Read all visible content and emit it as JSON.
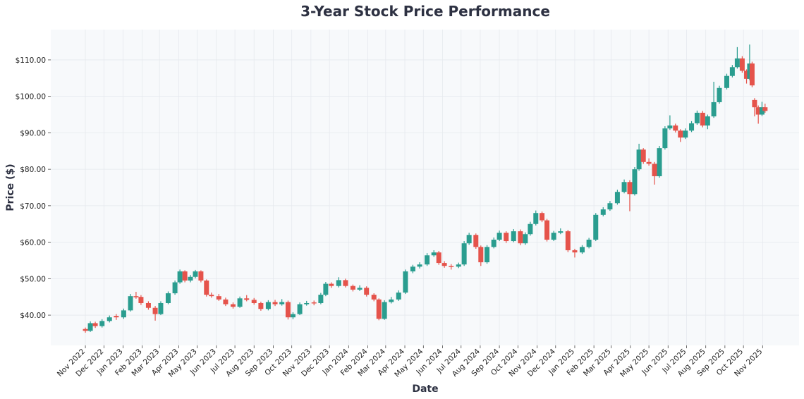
{
  "chart_data": {
    "type": "candlestick",
    "title": "3-Year Stock Price Performance",
    "xlabel": "Date",
    "ylabel": "Price ($)",
    "ylim": [
      31.7,
      118.3
    ],
    "xlim": [
      "2022-09-06",
      "2025-12-30"
    ],
    "grid": true,
    "colors": {
      "up": "#2a9d8f",
      "down": "#e5534b",
      "background": "#f7f9fb",
      "grid": "#e6e9ee",
      "title": "#2d3142"
    },
    "y_ticks": [
      40,
      50,
      60,
      70,
      80,
      90,
      100,
      110
    ],
    "y_tick_labels": [
      "$40.00",
      "$50.00",
      "$60.00",
      "$70.00",
      "$80.00",
      "$90.00",
      "$100.00",
      "$110.00"
    ],
    "x_ticks": [
      "2022-11-01",
      "2022-12-01",
      "2023-01-01",
      "2023-02-01",
      "2023-03-01",
      "2023-04-01",
      "2023-05-01",
      "2023-06-01",
      "2023-07-01",
      "2023-08-01",
      "2023-09-01",
      "2023-10-01",
      "2023-11-01",
      "2023-12-01",
      "2024-01-01",
      "2024-02-01",
      "2024-03-01",
      "2024-04-01",
      "2024-05-01",
      "2024-06-01",
      "2024-07-01",
      "2024-08-01",
      "2024-09-01",
      "2024-10-01",
      "2024-11-01",
      "2024-12-01",
      "2025-01-01",
      "2025-02-01",
      "2025-03-01",
      "2025-04-01",
      "2025-05-01",
      "2025-06-01",
      "2025-07-01",
      "2025-08-01",
      "2025-09-01",
      "2025-10-01",
      "2025-11-01"
    ],
    "x_tick_labels": [
      "Nov 2022",
      "Dec 2022",
      "Jan 2023",
      "Feb 2023",
      "Mar 2023",
      "Apr 2023",
      "May 2023",
      "Jun 2023",
      "Jul 2023",
      "Aug 2023",
      "Sep 2023",
      "Oct 2023",
      "Nov 2023",
      "Dec 2023",
      "Jan 2024",
      "Feb 2024",
      "Mar 2024",
      "Apr 2024",
      "May 2024",
      "Jun 2024",
      "Jul 2024",
      "Aug 2024",
      "Sep 2024",
      "Oct 2024",
      "Nov 2024",
      "Dec 2024",
      "Jan 2025",
      "Feb 2025",
      "Mar 2025",
      "Apr 2025",
      "May 2025",
      "Jun 2025",
      "Jul 2025",
      "Aug 2025",
      "Sep 2025",
      "Oct 2025",
      "Nov 2025"
    ],
    "ohlc_columns": [
      "date",
      "open",
      "high",
      "low",
      "close"
    ],
    "ohlc": [
      [
        "2022-11-01",
        36.2,
        36.6,
        35.2,
        35.7
      ],
      [
        "2022-11-09",
        35.7,
        38.3,
        35.4,
        37.8
      ],
      [
        "2022-11-17",
        37.8,
        38.2,
        36.5,
        37.0
      ],
      [
        "2022-11-28",
        37.0,
        38.9,
        36.6,
        38.4
      ],
      [
        "2022-12-10",
        38.4,
        39.9,
        38.0,
        39.4
      ],
      [
        "2022-12-21",
        39.8,
        40.3,
        38.7,
        39.4
      ],
      [
        "2023-01-02",
        39.4,
        41.8,
        39.0,
        41.3
      ],
      [
        "2023-01-13",
        41.3,
        45.8,
        41.0,
        45.2
      ],
      [
        "2023-01-22",
        45.2,
        46.4,
        44.5,
        45.0
      ],
      [
        "2023-01-30",
        45.0,
        45.5,
        42.8,
        43.3
      ],
      [
        "2023-02-11",
        43.3,
        43.8,
        41.5,
        42.0
      ],
      [
        "2023-02-22",
        42.0,
        42.5,
        38.5,
        40.3
      ],
      [
        "2023-03-03",
        40.3,
        43.8,
        40.0,
        43.3
      ],
      [
        "2023-03-15",
        43.3,
        46.5,
        43.0,
        46.0
      ],
      [
        "2023-03-26",
        46.0,
        49.5,
        45.6,
        49.0
      ],
      [
        "2023-04-03",
        49.0,
        52.5,
        48.6,
        52.0
      ],
      [
        "2023-04-11",
        52.0,
        52.3,
        49.0,
        49.5
      ],
      [
        "2023-04-20",
        49.5,
        51.0,
        49.0,
        50.5
      ],
      [
        "2023-04-28",
        50.5,
        52.4,
        50.1,
        52.0
      ],
      [
        "2023-05-07",
        52.0,
        52.3,
        49.0,
        49.5
      ],
      [
        "2023-05-16",
        49.5,
        49.8,
        45.1,
        45.6
      ],
      [
        "2023-05-24",
        45.6,
        46.2,
        44.8,
        45.2
      ],
      [
        "2023-06-05",
        45.2,
        45.8,
        43.9,
        44.3
      ],
      [
        "2023-06-16",
        44.3,
        44.8,
        42.5,
        43.0
      ],
      [
        "2023-06-28",
        43.0,
        43.5,
        41.8,
        42.3
      ],
      [
        "2023-07-09",
        42.3,
        45.1,
        42.0,
        44.6
      ],
      [
        "2023-07-20",
        44.6,
        45.5,
        43.8,
        44.2
      ],
      [
        "2023-08-01",
        44.2,
        44.7,
        42.9,
        43.3
      ],
      [
        "2023-08-12",
        43.3,
        43.7,
        41.2,
        41.7
      ],
      [
        "2023-08-24",
        41.7,
        44.1,
        41.3,
        43.6
      ],
      [
        "2023-09-04",
        43.6,
        44.2,
        42.5,
        43.0
      ],
      [
        "2023-09-15",
        43.0,
        44.4,
        42.6,
        43.6
      ],
      [
        "2023-09-25",
        43.6,
        44.0,
        38.8,
        39.4
      ],
      [
        "2023-10-03",
        39.4,
        40.8,
        38.9,
        40.3
      ],
      [
        "2023-10-14",
        40.3,
        43.5,
        40.0,
        43.0
      ],
      [
        "2023-10-25",
        43.0,
        43.9,
        42.6,
        43.3
      ],
      [
        "2023-11-06",
        43.5,
        44.0,
        42.7,
        43.3
      ],
      [
        "2023-11-17",
        43.3,
        46.1,
        43.0,
        45.6
      ],
      [
        "2023-11-25",
        45.6,
        49.1,
        45.2,
        48.6
      ],
      [
        "2023-12-04",
        48.6,
        49.0,
        47.5,
        48.0
      ],
      [
        "2023-12-16",
        48.0,
        50.4,
        47.6,
        49.6
      ],
      [
        "2023-12-27",
        49.6,
        50.0,
        47.6,
        48.0
      ],
      [
        "2024-01-08",
        48.0,
        48.4,
        46.5,
        47.0
      ],
      [
        "2024-01-19",
        47.0,
        48.2,
        46.6,
        47.5
      ],
      [
        "2024-01-30",
        47.5,
        47.9,
        45.1,
        45.6
      ],
      [
        "2024-02-11",
        45.6,
        46.0,
        43.8,
        44.3
      ],
      [
        "2024-02-19",
        44.3,
        44.6,
        38.6,
        39.0
      ],
      [
        "2024-02-28",
        39.0,
        44.1,
        38.7,
        43.6
      ],
      [
        "2024-03-10",
        43.6,
        45.0,
        43.2,
        44.3
      ],
      [
        "2024-03-22",
        44.3,
        46.8,
        43.9,
        46.2
      ],
      [
        "2024-04-02",
        46.2,
        52.5,
        45.8,
        52.0
      ],
      [
        "2024-04-14",
        52.0,
        53.8,
        51.5,
        53.3
      ],
      [
        "2024-04-25",
        53.3,
        54.5,
        52.8,
        53.9
      ],
      [
        "2024-05-07",
        53.9,
        57.0,
        53.5,
        56.4
      ],
      [
        "2024-05-18",
        56.4,
        57.8,
        56.0,
        57.2
      ],
      [
        "2024-05-26",
        57.2,
        57.6,
        53.8,
        54.3
      ],
      [
        "2024-06-04",
        54.3,
        54.8,
        53.0,
        53.5
      ],
      [
        "2024-06-15",
        53.5,
        54.0,
        52.5,
        53.3
      ],
      [
        "2024-06-27",
        53.3,
        54.4,
        52.9,
        53.9
      ],
      [
        "2024-07-06",
        53.9,
        60.3,
        53.5,
        59.7
      ],
      [
        "2024-07-14",
        59.7,
        62.6,
        59.3,
        62.0
      ],
      [
        "2024-07-25",
        62.0,
        62.4,
        58.2,
        58.7
      ],
      [
        "2024-08-02",
        58.7,
        59.1,
        53.5,
        54.5
      ],
      [
        "2024-08-12",
        54.5,
        59.2,
        54.1,
        58.7
      ],
      [
        "2024-08-23",
        58.7,
        61.3,
        58.3,
        60.7
      ],
      [
        "2024-09-01",
        60.7,
        63.2,
        60.3,
        62.6
      ],
      [
        "2024-09-12",
        62.6,
        63.0,
        59.8,
        60.3
      ],
      [
        "2024-09-24",
        60.3,
        63.6,
        60.0,
        63.0
      ],
      [
        "2024-10-05",
        63.0,
        63.5,
        59.2,
        59.7
      ],
      [
        "2024-10-13",
        59.7,
        62.7,
        59.3,
        62.2
      ],
      [
        "2024-10-21",
        62.2,
        65.6,
        61.8,
        65.0
      ],
      [
        "2024-10-30",
        65.0,
        68.7,
        64.6,
        68.0
      ],
      [
        "2024-11-09",
        68.0,
        68.4,
        65.5,
        66.0
      ],
      [
        "2024-11-17",
        66.0,
        66.4,
        60.2,
        60.7
      ],
      [
        "2024-11-28",
        60.7,
        63.1,
        60.3,
        62.6
      ],
      [
        "2024-12-09",
        62.6,
        63.8,
        62.2,
        63.0
      ],
      [
        "2024-12-21",
        63.0,
        63.4,
        57.3,
        57.8
      ],
      [
        "2025-01-01",
        57.8,
        58.2,
        55.8,
        57.2
      ],
      [
        "2025-01-13",
        57.2,
        59.2,
        56.8,
        58.7
      ],
      [
        "2025-01-24",
        58.7,
        61.2,
        58.3,
        60.7
      ],
      [
        "2025-02-04",
        60.7,
        68.0,
        60.3,
        67.5
      ],
      [
        "2025-02-16",
        67.5,
        69.6,
        67.1,
        69.0
      ],
      [
        "2025-02-27",
        69.0,
        71.3,
        68.6,
        70.7
      ],
      [
        "2025-03-11",
        70.7,
        74.4,
        70.3,
        73.8
      ],
      [
        "2025-03-22",
        73.8,
        77.2,
        73.4,
        76.5
      ],
      [
        "2025-03-31",
        76.5,
        77.0,
        68.5,
        73.2
      ],
      [
        "2025-04-08",
        73.2,
        80.6,
        72.8,
        80.0
      ],
      [
        "2025-04-15",
        80.0,
        87.0,
        79.6,
        85.4
      ],
      [
        "2025-04-22",
        85.4,
        85.8,
        81.5,
        82.0
      ],
      [
        "2025-05-01",
        82.0,
        83.0,
        81.0,
        81.5
      ],
      [
        "2025-05-10",
        81.5,
        82.0,
        75.8,
        78.1
      ],
      [
        "2025-05-18",
        78.1,
        86.4,
        77.7,
        85.8
      ],
      [
        "2025-05-27",
        85.8,
        91.8,
        85.4,
        91.2
      ],
      [
        "2025-06-04",
        91.2,
        94.8,
        90.8,
        92.0
      ],
      [
        "2025-06-13",
        92.0,
        92.5,
        90.1,
        90.6
      ],
      [
        "2025-06-21",
        90.6,
        91.0,
        87.5,
        88.7
      ],
      [
        "2025-06-29",
        88.7,
        91.2,
        88.3,
        90.6
      ],
      [
        "2025-07-09",
        90.6,
        93.2,
        90.2,
        92.6
      ],
      [
        "2025-07-18",
        92.6,
        96.1,
        92.2,
        95.5
      ],
      [
        "2025-07-27",
        95.5,
        96.0,
        91.5,
        92.0
      ],
      [
        "2025-08-04",
        92.0,
        95.0,
        91.0,
        94.5
      ],
      [
        "2025-08-14",
        94.5,
        104.0,
        94.1,
        98.4
      ],
      [
        "2025-08-23",
        98.4,
        102.9,
        98.0,
        102.3
      ],
      [
        "2025-09-04",
        102.3,
        106.2,
        101.9,
        105.6
      ],
      [
        "2025-09-13",
        105.6,
        108.6,
        105.2,
        108.0
      ],
      [
        "2025-09-21",
        108.0,
        113.5,
        107.6,
        110.4
      ],
      [
        "2025-09-29",
        110.4,
        111.0,
        106.5,
        107.0
      ],
      [
        "2025-10-06",
        107.0,
        107.4,
        103.5,
        104.8
      ],
      [
        "2025-10-11",
        104.8,
        114.2,
        104.4,
        109.0
      ],
      [
        "2025-10-15",
        109.0,
        109.5,
        102.5,
        103.0
      ],
      [
        "2025-10-19",
        99.0,
        99.5,
        94.5,
        97.0
      ],
      [
        "2025-10-25",
        97.0,
        97.5,
        92.5,
        95.0
      ],
      [
        "2025-10-31",
        95.0,
        98.5,
        94.6,
        97.0
      ],
      [
        "2025-11-05",
        97.0,
        98.0,
        95.5,
        96.0
      ]
    ]
  }
}
